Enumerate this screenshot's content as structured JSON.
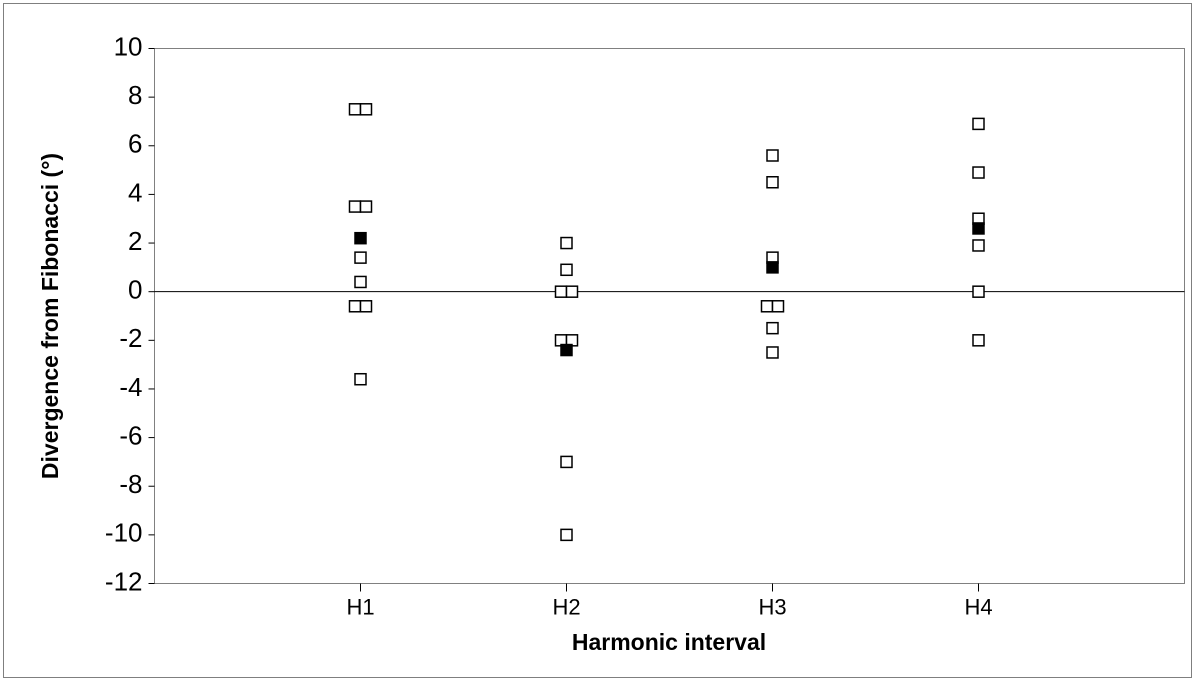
{
  "chart_data": {
    "type": "scatter",
    "title": "",
    "xlabel": "Harmonic interval",
    "ylabel": "Divergence from Fibonacci (°)",
    "categories": [
      "H1",
      "H2",
      "H3",
      "H4"
    ],
    "ylim": [
      -12,
      10
    ],
    "yticks": [
      "10",
      "8",
      "6",
      "4",
      "2",
      "0",
      "-2",
      "-4",
      "-6",
      "-8",
      "-10",
      "-12"
    ],
    "grid": false,
    "legend": "none",
    "zero_line": true,
    "series": [
      {
        "marker": "open-square",
        "points": [
          {
            "category": "H1",
            "y": 7.5
          },
          {
            "category": "H1",
            "y": 7.5
          },
          {
            "category": "H1",
            "y": 3.5
          },
          {
            "category": "H1",
            "y": 3.5
          },
          {
            "category": "H1",
            "y": 1.4
          },
          {
            "category": "H1",
            "y": 0.4
          },
          {
            "category": "H1",
            "y": -0.6
          },
          {
            "category": "H1",
            "y": -0.6
          },
          {
            "category": "H1",
            "y": -3.6
          },
          {
            "category": "H2",
            "y": 2.0
          },
          {
            "category": "H2",
            "y": 0.9
          },
          {
            "category": "H2",
            "y": 0.0
          },
          {
            "category": "H2",
            "y": 0.0
          },
          {
            "category": "H2",
            "y": -2.0
          },
          {
            "category": "H2",
            "y": -2.0
          },
          {
            "category": "H2",
            "y": -7.0
          },
          {
            "category": "H2",
            "y": -10.0
          },
          {
            "category": "H3",
            "y": 5.6
          },
          {
            "category": "H3",
            "y": 4.5
          },
          {
            "category": "H3",
            "y": 1.4
          },
          {
            "category": "H3",
            "y": -0.6
          },
          {
            "category": "H3",
            "y": -0.6
          },
          {
            "category": "H3",
            "y": -1.5
          },
          {
            "category": "H3",
            "y": -2.5
          },
          {
            "category": "H4",
            "y": 6.9
          },
          {
            "category": "H4",
            "y": 4.9
          },
          {
            "category": "H4",
            "y": 3.0
          },
          {
            "category": "H4",
            "y": 1.9
          },
          {
            "category": "H4",
            "y": 0.0
          },
          {
            "category": "H4",
            "y": -2.0
          }
        ]
      },
      {
        "marker": "filled-square",
        "points": [
          {
            "category": "H1",
            "y": 2.2
          },
          {
            "category": "H2",
            "y": -2.4
          },
          {
            "category": "H3",
            "y": 1.0
          },
          {
            "category": "H4",
            "y": 2.6
          }
        ]
      }
    ]
  }
}
